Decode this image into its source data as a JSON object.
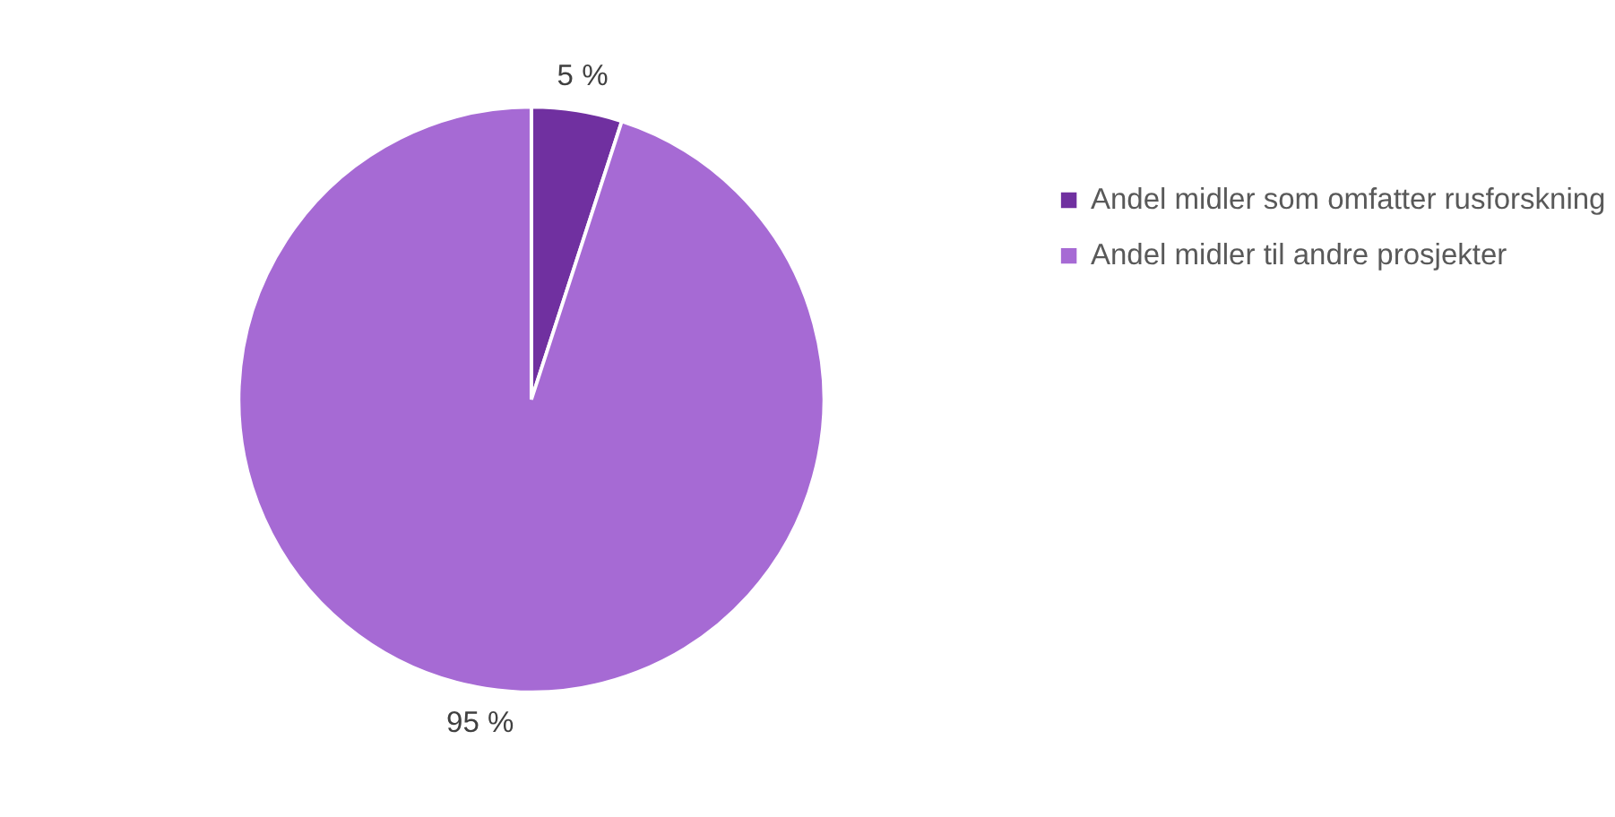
{
  "chart_data": {
    "type": "pie",
    "categories": [
      "Andel midler som omfatter rusforskning",
      "Andel midler til andre prosjekter"
    ],
    "values": [
      5,
      95
    ],
    "colors": [
      "#7030a0",
      "#a66ad4"
    ],
    "value_labels": [
      "5 %",
      "95 %"
    ],
    "legend": "right"
  }
}
